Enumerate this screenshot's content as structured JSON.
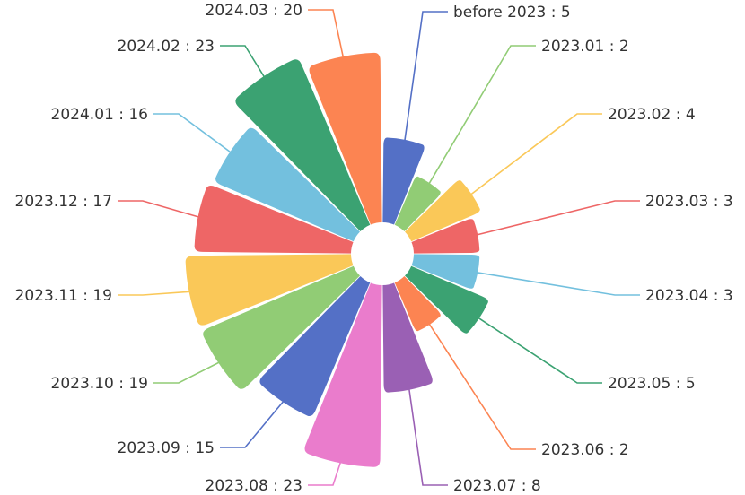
{
  "chart_data": {
    "type": "pie",
    "variant": "nightingale-rose",
    "start_angle_deg": 90,
    "direction": "clockwise",
    "labels_format": "{name} : {value}",
    "slices": [
      {
        "name": "before 2023",
        "value": 5,
        "color": "#5470c6"
      },
      {
        "name": "2023.01",
        "value": 2,
        "color": "#91cc75"
      },
      {
        "name": "2023.02",
        "value": 4,
        "color": "#fac858"
      },
      {
        "name": "2023.03",
        "value": 3,
        "color": "#ee6666"
      },
      {
        "name": "2023.04",
        "value": 3,
        "color": "#73c0de"
      },
      {
        "name": "2023.05",
        "value": 5,
        "color": "#3ba272"
      },
      {
        "name": "2023.06",
        "value": 2,
        "color": "#fc8452"
      },
      {
        "name": "2023.07",
        "value": 8,
        "color": "#9a60b4"
      },
      {
        "name": "2023.08",
        "value": 23,
        "color": "#ea7ccc"
      },
      {
        "name": "2023.09",
        "value": 15,
        "color": "#5470c6"
      },
      {
        "name": "2023.10",
        "value": 19,
        "color": "#91cc75"
      },
      {
        "name": "2023.11",
        "value": 19,
        "color": "#fac858"
      },
      {
        "name": "2023.12",
        "value": 17,
        "color": "#ee6666"
      },
      {
        "name": "2024.01",
        "value": 16,
        "color": "#73c0de"
      },
      {
        "name": "2024.02",
        "value": 23,
        "color": "#3ba272"
      },
      {
        "name": "2024.03",
        "value": 20,
        "color": "#fc8452"
      }
    ]
  }
}
